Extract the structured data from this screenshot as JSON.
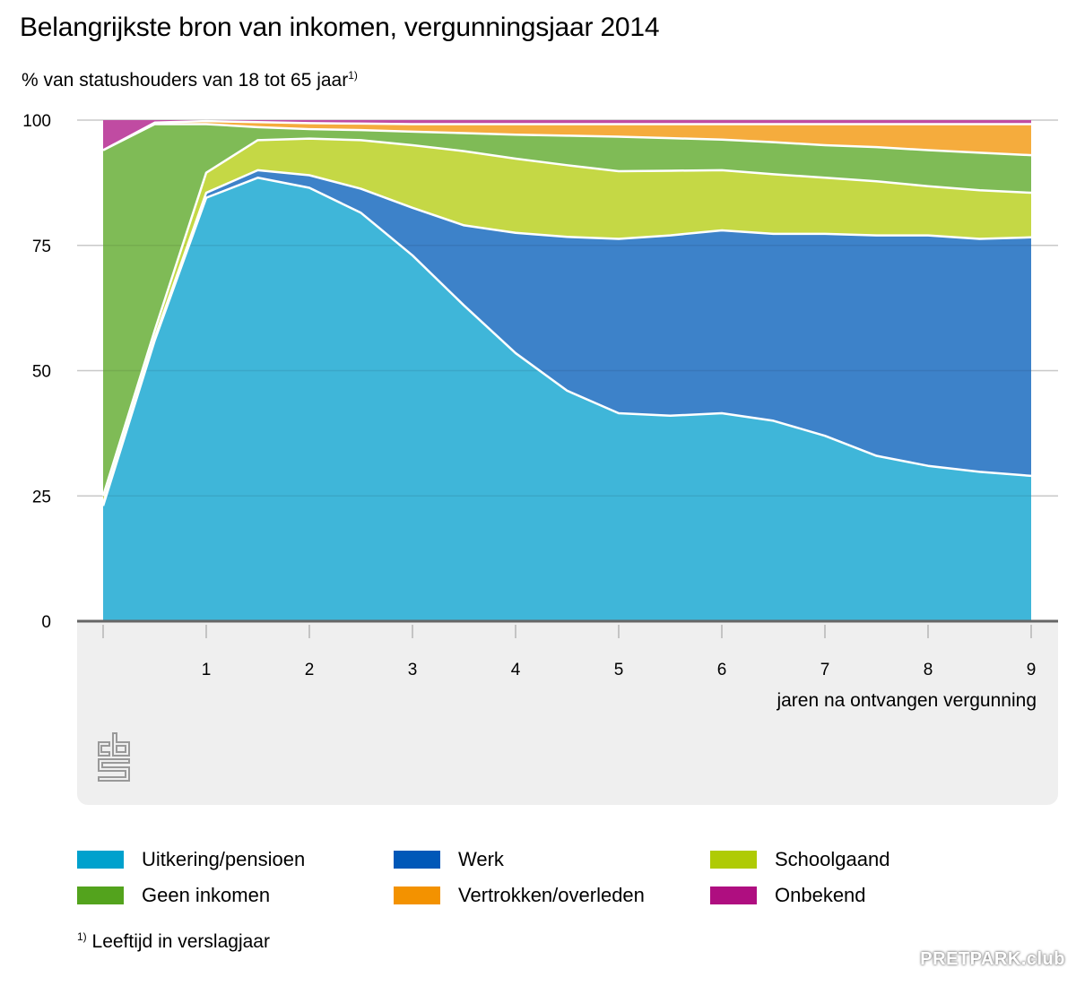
{
  "title": "Belangrijkste bron van inkomen, vergunningsjaar 2014",
  "subtitle": "% van statushouders van 18 tot 65 jaar",
  "subtitle_footnote_mark": "1)",
  "footnote": {
    "mark": "1)",
    "text": "Leeftijd in verslagjaar"
  },
  "logo": "cbs-logo",
  "watermark": "PRETPARK.club",
  "chart_data": {
    "type": "area",
    "stacked": true,
    "title": "Belangrijkste bron van inkomen, vergunningsjaar 2014",
    "ylabel": "% van statushouders van 18 tot 65 jaar",
    "xlabel": "jaren na ontvangen vergunning",
    "ylim": [
      0,
      100
    ],
    "xlim": [
      0,
      9
    ],
    "y_ticks": [
      0,
      25,
      50,
      75,
      100
    ],
    "x_ticks": [
      0,
      1,
      2,
      3,
      4,
      5,
      6,
      7,
      8,
      9
    ],
    "x_tick_labels": [
      "",
      "1",
      "2",
      "3",
      "4",
      "5",
      "6",
      "7",
      "8",
      "9"
    ],
    "grid": "horizontal",
    "legend_position": "bottom",
    "x": [
      0,
      0.5,
      1,
      1.5,
      2,
      2.5,
      3,
      3.5,
      4,
      4.5,
      5,
      5.5,
      6,
      6.5,
      7,
      7.5,
      8,
      8.5,
      9
    ],
    "series": [
      {
        "name": "Uitkering/pensioen",
        "color": "#3fb6d9",
        "legend_color": "#00a1cd",
        "values": [
          23,
          56,
          84.5,
          88.5,
          86.5,
          81.5,
          73,
          63,
          53.5,
          46,
          41.5,
          41,
          41.5,
          40,
          37,
          33,
          31,
          29.8,
          29
        ]
      },
      {
        "name": "Werk",
        "color": "#3d82c9",
        "legend_color": "#0058b8",
        "values": [
          0.5,
          0.5,
          1,
          1.5,
          2.5,
          4.8,
          9.5,
          16,
          24,
          30.7,
          34.8,
          36,
          36.5,
          37.3,
          40.3,
          44,
          46,
          46.5,
          47.6
        ]
      },
      {
        "name": "Schoolgaand",
        "color": "#c5d845",
        "legend_color": "#afcb05",
        "values": [
          1.5,
          1.5,
          4,
          6,
          7.3,
          9.7,
          12.5,
          14.8,
          14.8,
          14.3,
          13.5,
          12.9,
          12,
          11.9,
          11.2,
          10.8,
          9.8,
          9.7,
          8.9
        ]
      },
      {
        "name": "Geen inkomen",
        "color": "#7fbb56",
        "legend_color": "#53a31d",
        "values": [
          69,
          41.2,
          9.7,
          2.6,
          1.9,
          2,
          2.7,
          3.6,
          4.8,
          5.9,
          6.9,
          6.5,
          6.1,
          6.4,
          6.5,
          6.8,
          7.2,
          7.5,
          7.5
        ]
      },
      {
        "name": "Vertrokken/overleden",
        "color": "#f5ac3d",
        "legend_color": "#f39200",
        "values": [
          0,
          0.3,
          0.6,
          1,
          1.2,
          1.3,
          1.5,
          1.8,
          2.1,
          2.3,
          2.5,
          2.8,
          3.1,
          3.6,
          4.2,
          4.6,
          5.2,
          5.7,
          6.2
        ]
      },
      {
        "name": "Onbekend",
        "color": "#c04ba2",
        "legend_color": "#af0e80",
        "values": [
          6,
          0.5,
          0.2,
          0.4,
          0.6,
          0.7,
          0.8,
          0.8,
          0.8,
          0.8,
          0.8,
          0.8,
          0.8,
          0.8,
          0.8,
          0.8,
          0.8,
          0.8,
          0.8
        ]
      }
    ]
  },
  "legend": {
    "items": [
      {
        "label": "Uitkering/pensioen",
        "color": "#00a1cd"
      },
      {
        "label": "Werk",
        "color": "#0058b8"
      },
      {
        "label": "Schoolgaand",
        "color": "#afcb05"
      },
      {
        "label": "Geen inkomen",
        "color": "#53a31d"
      },
      {
        "label": "Vertrokken/overleden",
        "color": "#f39200"
      },
      {
        "label": "Onbekend",
        "color": "#af0e80"
      }
    ]
  }
}
